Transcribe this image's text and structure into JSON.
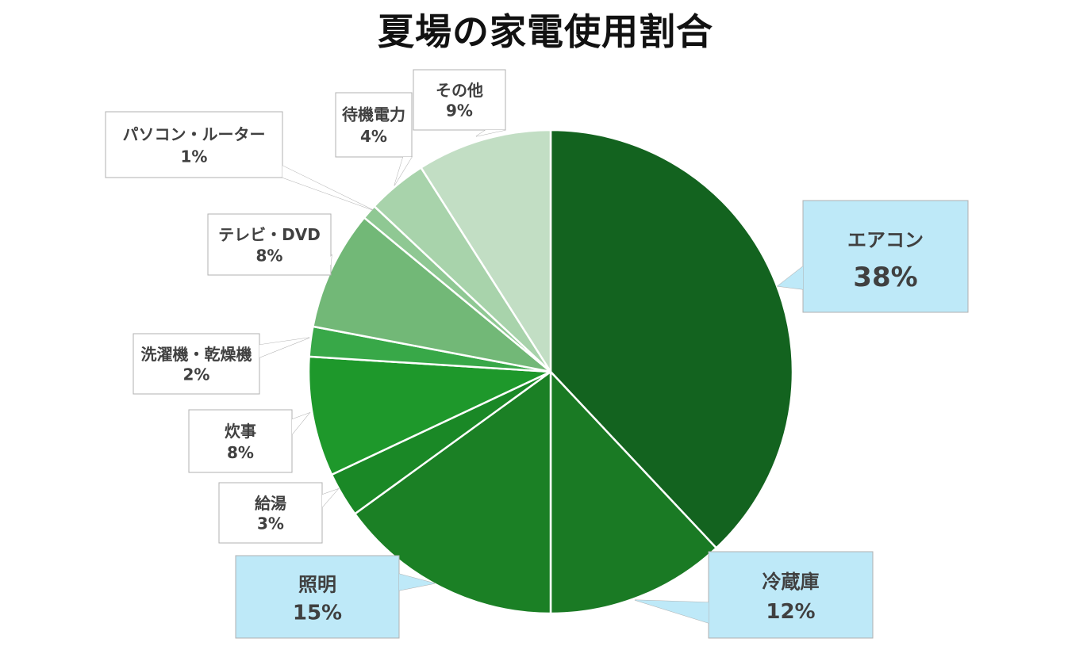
{
  "chart_data": {
    "type": "pie",
    "title": "夏場の家電使用割合",
    "slices": [
      {
        "label": "エアコン",
        "value": 38,
        "display": "38%",
        "color": "#13631f"
      },
      {
        "label": "冷蔵庫",
        "value": 12,
        "display": "12%",
        "color": "#1a7a24"
      },
      {
        "label": "照明",
        "value": 15,
        "display": "15%",
        "color": "#1b8025"
      },
      {
        "label": "給湯",
        "value": 3,
        "display": "3%",
        "color": "#1a8826"
      },
      {
        "label": "炊事",
        "value": 8,
        "display": "8%",
        "color": "#1e982b"
      },
      {
        "label": "洗濯機・乾燥機",
        "value": 2,
        "display": "2%",
        "color": "#38a848"
      },
      {
        "label": "テレビ・DVD",
        "value": 8,
        "display": "8%",
        "color": "#72b877"
      },
      {
        "label": "パソコン・ルーター",
        "value": 1,
        "display": "1%",
        "color": "#8fc893"
      },
      {
        "label": "待機電力",
        "value": 4,
        "display": "4%",
        "color": "#a8d3ab"
      },
      {
        "label": "その他",
        "value": 9,
        "display": "9%",
        "color": "#c2dec4"
      }
    ],
    "highlight_callout_color": "#bee9f8",
    "plain_callout_color": "#ffffff"
  }
}
